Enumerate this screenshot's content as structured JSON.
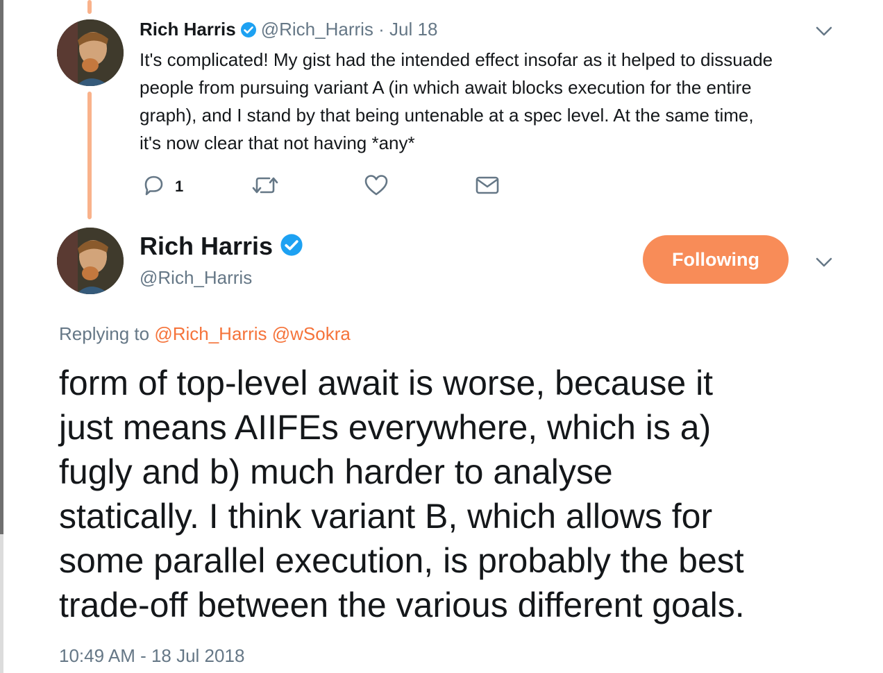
{
  "parent_tweet": {
    "name": "Rich Harris",
    "handle": "@Rich_Harris",
    "date": "· Jul 18",
    "text_lines": [
      "It's complicated! My gist had the intended effect insofar as it helped to dissuade",
      "people from pursuing variant A (in which await blocks execution for the entire",
      "graph), and I stand by that being untenable at a spec level. At the same time,",
      "it's now clear that not having *any*"
    ],
    "reply_count": "1",
    "icons": [
      "reply-icon",
      "retweet-icon",
      "like-icon",
      "message-icon",
      "chevron-down-icon"
    ]
  },
  "main_tweet": {
    "name": "Rich Harris",
    "handle": "@Rich_Harris",
    "follow_label": "Following",
    "replying_prefix": "Replying to",
    "replying_to": [
      "@Rich_Harris",
      "@wSokra"
    ],
    "text_lines": [
      "form of top-level await is worse, because it",
      "just means AIIFEs everywhere, which is a)",
      "fugly and b) much harder to analyse",
      "statically. I think variant B, which allows for",
      "some parallel execution, is probably the best",
      "trade-off between the various different goals."
    ],
    "timestamp": "10:49 AM - 18 Jul 2018"
  },
  "colors": {
    "accent": "#f88c58",
    "mention": "#f5733a",
    "thread_line": "#f9b28b",
    "verified": "#1da1f2",
    "secondary_text": "#657786"
  }
}
